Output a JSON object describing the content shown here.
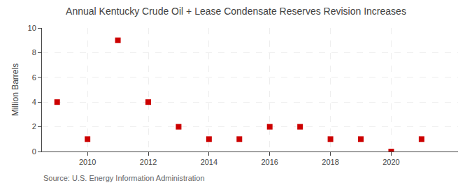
{
  "chart_data": {
    "type": "scatter",
    "title": "Annual Kentucky Crude Oil + Lease Condensate Reserves Revision Increases",
    "y_label": "Million Barrels",
    "annotations": [
      "Source: U.S. Energy Information Administration"
    ],
    "x": [
      2009,
      2010,
      2011,
      2012,
      2013,
      2014,
      2015,
      2016,
      2017,
      2018,
      2019,
      2020,
      2021
    ],
    "values": [
      4.0,
      1.0,
      9.0,
      4.0,
      2.0,
      1.0,
      1.0,
      2.0,
      2.0,
      1.0,
      1.0,
      0.0,
      1.0
    ],
    "color": "#cc0000",
    "marker": "square",
    "xlim": [
      2008.5,
      2022.2
    ],
    "ylim": [
      0,
      10
    ],
    "xticks": [
      2010,
      2012,
      2014,
      2016,
      2018,
      2020
    ],
    "yticks": [
      0,
      2,
      4,
      6,
      8,
      10
    ],
    "grid": true
  }
}
